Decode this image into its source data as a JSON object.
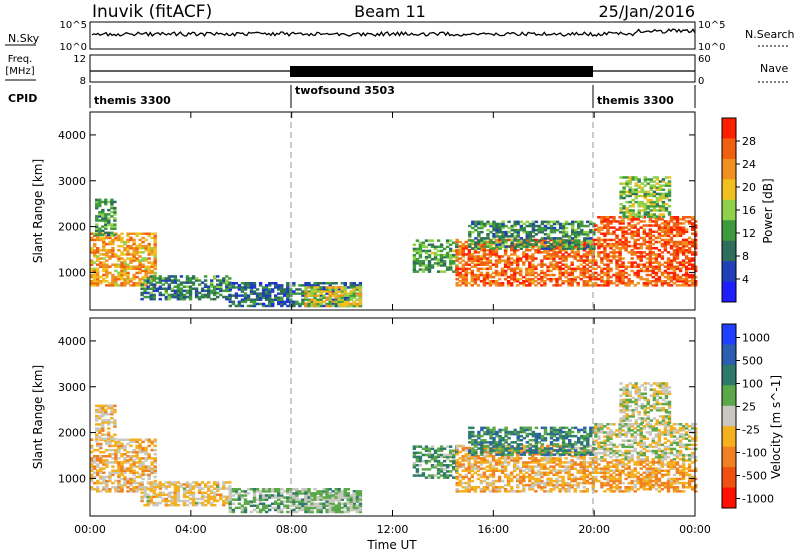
{
  "header": {
    "station": "Inuvik (fitACF)",
    "beam": "Beam 11",
    "date": "25/Jan/2016"
  },
  "summary_panels": {
    "nsky_label": "N.Sky",
    "nsky_ticks": [
      "10^5",
      "10^0"
    ],
    "nsearch_label": "N.Search",
    "nsearch_ticks": [
      "10^5",
      "10^0"
    ],
    "freq_label": "Freq.",
    "freq_unit": "[MHz]",
    "freq_ticks": [
      "12",
      "8"
    ],
    "nave_label": "Nave",
    "nave_ticks": [
      "60",
      "0"
    ],
    "cpid_label": "CPID",
    "cpid_segments": [
      {
        "name": "themis 3300",
        "start_hr": 0,
        "end_hr": 8
      },
      {
        "name": "twofsound 3503",
        "start_hr": 8,
        "end_hr": 20
      },
      {
        "name": "themis 3300",
        "start_hr": 20,
        "end_hr": 24
      }
    ]
  },
  "colors": {
    "power_scale": [
      "#1e1eff",
      "#2040b8",
      "#2e6e5a",
      "#3f9a3f",
      "#8ed14a",
      "#f0c020",
      "#f09020",
      "#f06010",
      "#ff2000"
    ],
    "velocity_scale": [
      "#2040ff",
      "#2a5eb0",
      "#2e7a6a",
      "#5aa84a",
      "#c8c8c0",
      "#f5b020",
      "#f08020",
      "#f05010",
      "#ff1000"
    ]
  },
  "chart_data": [
    {
      "type": "heatmap",
      "title": "Power",
      "xlabel": "",
      "ylabel": "Slant Range [km]",
      "xlim": [
        0,
        24
      ],
      "ylim": [
        180,
        4500
      ],
      "yticks": [
        "1000",
        "2000",
        "3000",
        "4000"
      ],
      "colorbar_label": "Power [dB]",
      "colorbar_ticks": [
        "4",
        "8",
        "12",
        "16",
        "20",
        "24",
        "28"
      ],
      "colorbar_range": [
        0,
        32
      ],
      "regions": [
        {
          "t0": 0.0,
          "t1": 2.6,
          "r0": 700,
          "r1": 1850,
          "v": 22
        },
        {
          "t0": 0.2,
          "t1": 1.0,
          "r0": 1800,
          "r1": 2600,
          "v": 12
        },
        {
          "t0": 2.0,
          "t1": 5.5,
          "r0": 400,
          "r1": 900,
          "v": 10
        },
        {
          "t0": 5.5,
          "t1": 10.7,
          "r0": 250,
          "r1": 750,
          "v": 8
        },
        {
          "t0": 8.5,
          "t1": 10.7,
          "r0": 250,
          "r1": 700,
          "v": 18
        },
        {
          "t0": 12.8,
          "t1": 14.5,
          "r0": 1000,
          "r1": 1700,
          "v": 13
        },
        {
          "t0": 14.5,
          "t1": 20.0,
          "r0": 700,
          "r1": 1700,
          "v": 26
        },
        {
          "t0": 15.0,
          "t1": 20.0,
          "r0": 1500,
          "r1": 2100,
          "v": 11
        },
        {
          "t0": 20.0,
          "t1": 24.0,
          "r0": 700,
          "r1": 2200,
          "v": 27
        },
        {
          "t0": 21.0,
          "t1": 23.0,
          "r0": 2200,
          "r1": 3100,
          "v": 15
        }
      ]
    },
    {
      "type": "heatmap",
      "title": "Velocity",
      "xlabel": "Time UT",
      "ylabel": "Slant Range [km]",
      "xlim": [
        0,
        24
      ],
      "ylim": [
        180,
        4500
      ],
      "xticks": [
        "00:00",
        "04:00",
        "08:00",
        "12:00",
        "16:00",
        "20:00",
        "00:00"
      ],
      "yticks": [
        "1000",
        "2000",
        "3000",
        "4000"
      ],
      "colorbar_label": "Velocity [m s^-1]",
      "colorbar_ticks": [
        "1000",
        "500",
        "100",
        "25",
        "-25",
        "-100",
        "-500",
        "-1000"
      ],
      "colorbar_range": [
        -1000,
        1000
      ],
      "regions": [
        {
          "t0": 0.0,
          "t1": 2.6,
          "r0": 700,
          "r1": 1850,
          "v": -200
        },
        {
          "t0": 0.2,
          "t1": 1.0,
          "r0": 1800,
          "r1": 2600,
          "v": -150
        },
        {
          "t0": 2.0,
          "t1": 5.5,
          "r0": 400,
          "r1": 900,
          "v": -120
        },
        {
          "t0": 5.5,
          "t1": 10.7,
          "r0": 250,
          "r1": 750,
          "v": 200
        },
        {
          "t0": 8.5,
          "t1": 10.7,
          "r0": 250,
          "r1": 700,
          "v": 150
        },
        {
          "t0": 12.8,
          "t1": 14.5,
          "r0": 1000,
          "r1": 1700,
          "v": 300
        },
        {
          "t0": 14.5,
          "t1": 20.0,
          "r0": 700,
          "r1": 1700,
          "v": -250
        },
        {
          "t0": 15.0,
          "t1": 20.0,
          "r0": 1500,
          "r1": 2100,
          "v": 400
        },
        {
          "t0": 20.0,
          "t1": 24.0,
          "r0": 700,
          "r1": 1400,
          "v": -300
        },
        {
          "t0": 20.0,
          "t1": 24.0,
          "r0": 1400,
          "r1": 2200,
          "v": 0
        },
        {
          "t0": 21.0,
          "t1": 23.0,
          "r0": 2200,
          "r1": 3100,
          "v": 10
        }
      ]
    }
  ]
}
